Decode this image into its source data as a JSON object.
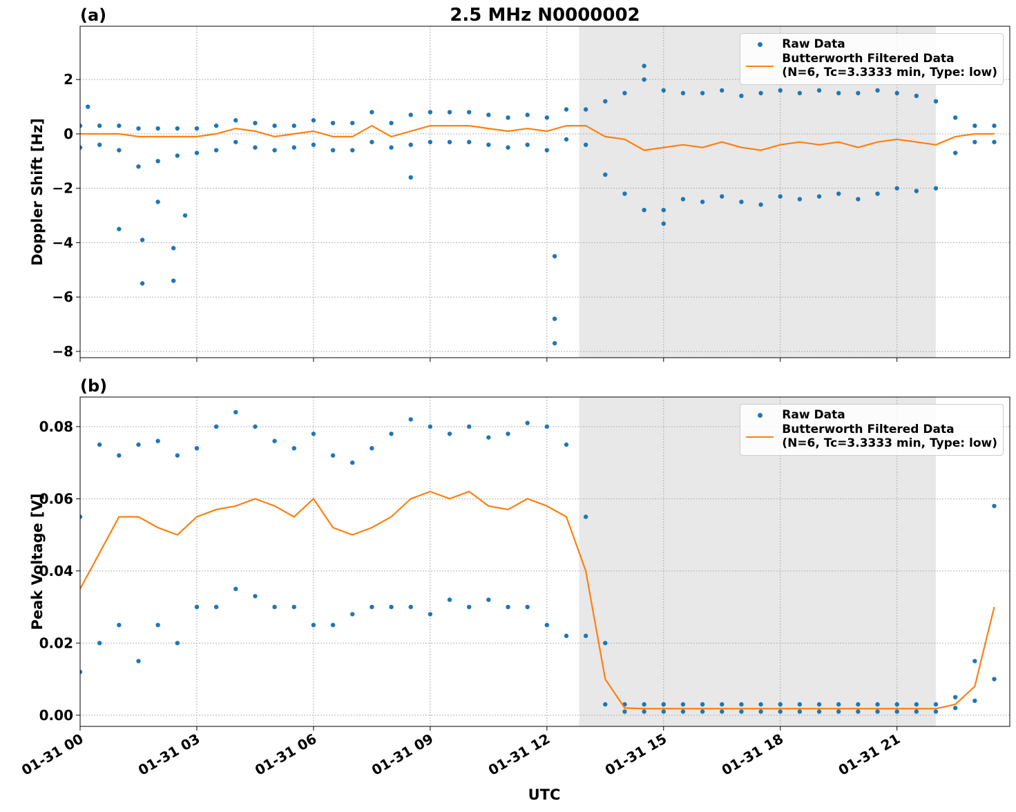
{
  "chart_data": [
    {
      "type": "scatter",
      "label": "(a)",
      "title": "2.5 MHz N0000002",
      "ylabel": "Doppler Shift [Hz]",
      "sharex": true,
      "ylim": [
        -8.23,
        3.96
      ],
      "yticks": [
        {
          "value": -8,
          "label": "−8"
        },
        {
          "value": -6,
          "label": "−6"
        },
        {
          "value": -4,
          "label": "−4"
        },
        {
          "value": -2,
          "label": "−2"
        },
        0,
        2
      ],
      "grid": true,
      "legend": "upper right",
      "series": [
        {
          "name": "Raw Data",
          "color": "#1f77b4",
          "kind": "points",
          "x": [
            0,
            0,
            0.5,
            0.5,
            1,
            1,
            1.5,
            1.5,
            2,
            2,
            2.5,
            2.5,
            3,
            3,
            3.5,
            3.5,
            4,
            4,
            4.5,
            4.5,
            5,
            5,
            5.5,
            5.5,
            6,
            6,
            6.5,
            6.5,
            7,
            7,
            7.5,
            7.5,
            8,
            8,
            8.5,
            8.5,
            9,
            9,
            9.5,
            9.5,
            10,
            10,
            10.5,
            10.5,
            11,
            11,
            11.5,
            11.5,
            12,
            12,
            12.5,
            12.5,
            13,
            13,
            13.5,
            13.5,
            14,
            14,
            14.5,
            14.5,
            15,
            15,
            15.5,
            15.5,
            16,
            16,
            16.5,
            16.5,
            17,
            17,
            17.5,
            17.5,
            18,
            18,
            18.5,
            18.5,
            19,
            19,
            19.5,
            19.5,
            20,
            20,
            20.5,
            20.5,
            21,
            21,
            21.5,
            21.5,
            22,
            22,
            22.5,
            22.5,
            23,
            23,
            23.5,
            23.5,
            0.2,
            1.0,
            1.6,
            1.6,
            2.0,
            2.4,
            2.4,
            2.7,
            8.5,
            12.2,
            12.2,
            12.2,
            14.5,
            15.0
          ],
          "values": [
            0.3,
            -0.5,
            0.3,
            -0.4,
            0.3,
            -0.6,
            0.2,
            -1.2,
            0.2,
            -1.0,
            0.2,
            -0.8,
            0.2,
            -0.7,
            0.3,
            -0.6,
            0.5,
            -0.3,
            0.4,
            -0.5,
            0.3,
            -0.6,
            0.3,
            -0.5,
            0.5,
            -0.4,
            0.4,
            -0.6,
            0.4,
            -0.6,
            0.8,
            -0.3,
            0.4,
            -0.5,
            0.7,
            -0.4,
            0.8,
            -0.3,
            0.8,
            -0.3,
            0.8,
            -0.3,
            0.7,
            -0.4,
            0.6,
            -0.5,
            0.7,
            -0.4,
            0.6,
            -0.6,
            0.9,
            -0.2,
            0.9,
            -0.4,
            1.2,
            -1.5,
            1.5,
            -2.2,
            2.0,
            -2.8,
            1.6,
            -2.8,
            1.5,
            -2.4,
            1.5,
            -2.5,
            1.6,
            -2.3,
            1.4,
            -2.5,
            1.5,
            -2.6,
            1.6,
            -2.3,
            1.5,
            -2.4,
            1.6,
            -2.3,
            1.5,
            -2.2,
            1.5,
            -2.4,
            1.6,
            -2.2,
            1.5,
            -2.0,
            1.4,
            -2.1,
            1.2,
            -2.0,
            0.6,
            -0.7,
            0.3,
            -0.3,
            0.3,
            -0.3,
            1.0,
            -3.5,
            -5.5,
            -3.9,
            -2.5,
            -4.2,
            -5.4,
            -3.0,
            -1.6,
            -6.8,
            -7.7,
            -4.5,
            2.5,
            -3.3
          ]
        },
        {
          "name": "Butterworth Filtered Data\n(N=6, Tc=3.3333 min, Type: low)",
          "color": "#ff7f0e",
          "kind": "line",
          "x": [
            0,
            0.5,
            1,
            1.5,
            2,
            2.5,
            3,
            3.5,
            4,
            4.5,
            5,
            5.5,
            6,
            6.5,
            7,
            7.5,
            8,
            8.5,
            9,
            9.5,
            10,
            10.5,
            11,
            11.5,
            12,
            12.5,
            13,
            13.5,
            14,
            14.5,
            15,
            15.5,
            16,
            16.5,
            17,
            17.5,
            18,
            18.5,
            19,
            19.5,
            20,
            20.5,
            21,
            21.5,
            22,
            22.5,
            23,
            23.5
          ],
          "values": [
            0,
            0,
            0,
            -0.1,
            -0.1,
            -0.1,
            -0.1,
            0,
            0.2,
            0.1,
            -0.1,
            0,
            0.1,
            -0.1,
            -0.1,
            0.3,
            -0.1,
            0.1,
            0.3,
            0.3,
            0.3,
            0.2,
            0.1,
            0.2,
            0.1,
            0.3,
            0.3,
            -0.1,
            -0.2,
            -0.6,
            -0.5,
            -0.4,
            -0.5,
            -0.3,
            -0.5,
            -0.6,
            -0.4,
            -0.3,
            -0.4,
            -0.3,
            -0.5,
            -0.3,
            -0.2,
            -0.3,
            -0.4,
            -0.1,
            0,
            0
          ]
        }
      ]
    },
    {
      "type": "scatter",
      "label": "(b)",
      "ylabel": "Peak Voltage [V]",
      "xlabel": "UTC",
      "xlim": [
        0,
        23.9
      ],
      "xticks": [
        {
          "value": 0,
          "label": "01-31 00"
        },
        {
          "value": 3,
          "label": "01-31 03"
        },
        {
          "value": 6,
          "label": "01-31 06"
        },
        {
          "value": 9,
          "label": "01-31 09"
        },
        {
          "value": 12,
          "label": "01-31 12"
        },
        {
          "value": 15,
          "label": "01-31 15"
        },
        {
          "value": 18,
          "label": "01-31 18"
        },
        {
          "value": 21,
          "label": "01-31 21"
        }
      ],
      "shaded_span": [
        12.83,
        22
      ],
      "ylim": [
        -0.0031,
        0.0882
      ],
      "yticks": [
        {
          "value": 0,
          "label": "0.00"
        },
        {
          "value": 0.02,
          "label": "0.02"
        },
        {
          "value": 0.04,
          "label": "0.04"
        },
        {
          "value": 0.06,
          "label": "0.06"
        },
        {
          "value": 0.08,
          "label": "0.08"
        }
      ],
      "grid": true,
      "legend": "upper right",
      "series": [
        {
          "name": "Raw Data",
          "color": "#1f77b4",
          "kind": "points",
          "x": [
            0,
            0,
            0.5,
            0.5,
            1,
            1,
            1.5,
            1.5,
            2,
            2,
            2.5,
            2.5,
            3,
            3,
            3.5,
            3.5,
            4,
            4,
            4.5,
            4.5,
            5,
            5,
            5.5,
            5.5,
            6,
            6,
            6.5,
            6.5,
            7,
            7,
            7.5,
            7.5,
            8,
            8,
            8.5,
            8.5,
            9,
            9,
            9.5,
            9.5,
            10,
            10,
            10.5,
            10.5,
            11,
            11,
            11.5,
            11.5,
            12,
            12,
            12.5,
            12.5,
            13,
            13,
            13.5,
            13.5,
            14,
            14,
            14.5,
            14.5,
            15,
            15,
            15.5,
            15.5,
            16,
            16,
            16.5,
            16.5,
            17,
            17,
            17.5,
            17.5,
            18,
            18,
            18.5,
            18.5,
            19,
            19,
            19.5,
            19.5,
            20,
            20,
            20.5,
            20.5,
            21,
            21,
            21.5,
            21.5,
            22,
            22,
            22.5,
            22.5,
            23,
            23,
            23.5,
            23.5
          ],
          "values": [
            0.055,
            0.012,
            0.075,
            0.02,
            0.072,
            0.025,
            0.075,
            0.015,
            0.076,
            0.025,
            0.072,
            0.02,
            0.074,
            0.03,
            0.08,
            0.03,
            0.084,
            0.035,
            0.08,
            0.033,
            0.076,
            0.03,
            0.074,
            0.03,
            0.078,
            0.025,
            0.072,
            0.025,
            0.07,
            0.028,
            0.074,
            0.03,
            0.078,
            0.03,
            0.082,
            0.03,
            0.08,
            0.028,
            0.078,
            0.032,
            0.08,
            0.03,
            0.077,
            0.032,
            0.078,
            0.03,
            0.081,
            0.03,
            0.08,
            0.025,
            0.075,
            0.022,
            0.055,
            0.022,
            0.02,
            0.003,
            0.003,
            0.001,
            0.003,
            0.001,
            0.003,
            0.001,
            0.003,
            0.001,
            0.003,
            0.001,
            0.003,
            0.001,
            0.003,
            0.001,
            0.003,
            0.001,
            0.003,
            0.001,
            0.003,
            0.001,
            0.003,
            0.001,
            0.003,
            0.001,
            0.003,
            0.001,
            0.003,
            0.001,
            0.003,
            0.001,
            0.003,
            0.001,
            0.003,
            0.001,
            0.005,
            0.002,
            0.015,
            0.004,
            0.058,
            0.01
          ]
        },
        {
          "name": "Butterworth Filtered Data\n(N=6, Tc=3.3333 min, Type: low)",
          "color": "#ff7f0e",
          "kind": "line",
          "x": [
            0,
            0.5,
            1,
            1.5,
            2,
            2.5,
            3,
            3.5,
            4,
            4.5,
            5,
            5.5,
            6,
            6.5,
            7,
            7.5,
            8,
            8.5,
            9,
            9.5,
            10,
            10.5,
            11,
            11.5,
            12,
            12.5,
            13,
            13.5,
            14,
            14.5,
            15,
            15.5,
            16,
            16.5,
            17,
            17.5,
            18,
            18.5,
            19,
            19.5,
            20,
            20.5,
            21,
            21.5,
            22,
            22.5,
            23,
            23.5
          ],
          "values": [
            0.035,
            0.045,
            0.055,
            0.055,
            0.052,
            0.05,
            0.055,
            0.057,
            0.058,
            0.06,
            0.058,
            0.055,
            0.06,
            0.052,
            0.05,
            0.052,
            0.055,
            0.06,
            0.062,
            0.06,
            0.062,
            0.058,
            0.057,
            0.06,
            0.058,
            0.055,
            0.04,
            0.01,
            0.002,
            0.0018,
            0.0018,
            0.0018,
            0.0018,
            0.0018,
            0.0018,
            0.0018,
            0.0018,
            0.0018,
            0.0018,
            0.0018,
            0.0018,
            0.0018,
            0.0018,
            0.0018,
            0.0018,
            0.003,
            0.008,
            0.03
          ]
        }
      ]
    }
  ]
}
